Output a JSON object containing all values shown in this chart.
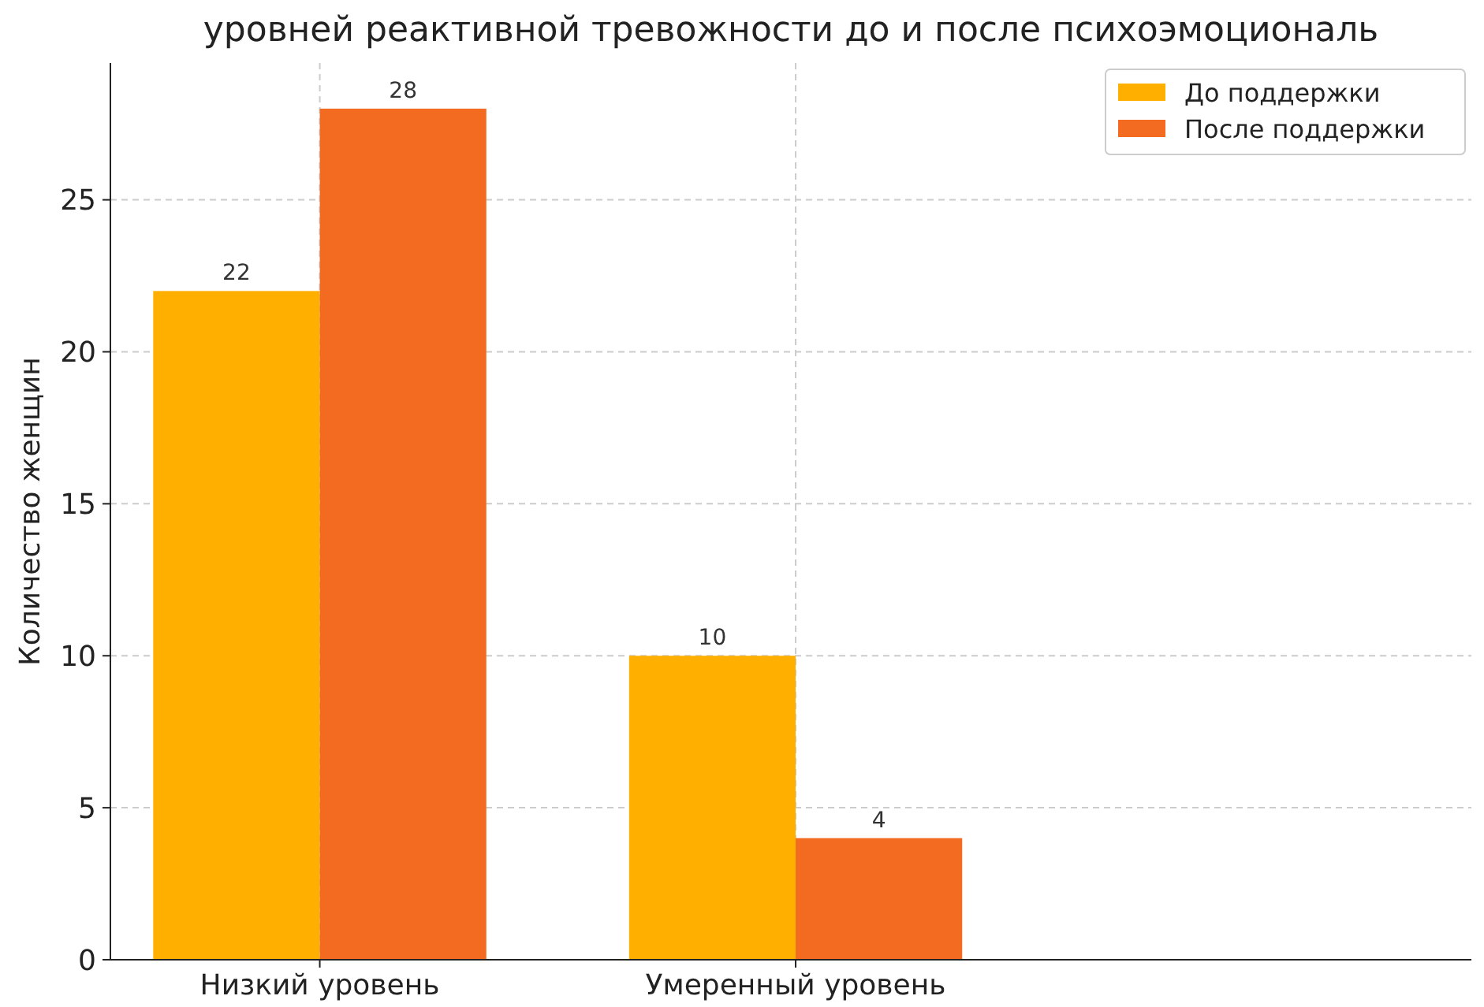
{
  "chart_data": {
    "type": "bar",
    "title": "уровней реактивной тревожности до и после психоэмоциональ",
    "ylabel": "Количество женщин",
    "categories": [
      "Низкий уровень",
      "Умеренный уровень"
    ],
    "series": [
      {
        "name": "До поддержки",
        "color": "#ffaf00",
        "values": [
          22,
          10
        ]
      },
      {
        "name": "После поддержки",
        "color": "#f26b21",
        "values": [
          28,
          4
        ]
      }
    ],
    "ylim": [
      0,
      29.5
    ],
    "yticks": [
      0,
      5,
      10,
      15,
      20,
      25
    ],
    "grid": true,
    "legend": "top right",
    "data_labels": true
  }
}
